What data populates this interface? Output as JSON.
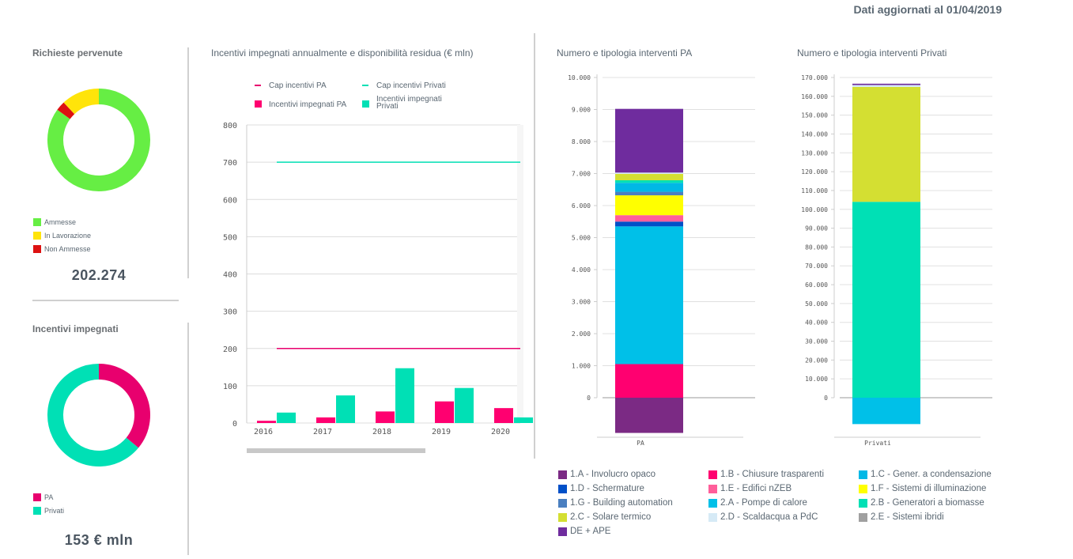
{
  "header": {
    "updated_label": "Dati aggiornati al 01/04/2019"
  },
  "richieste": {
    "title": "Richieste pervenute",
    "total": "202.274",
    "legend": [
      {
        "label": "Ammesse",
        "color": "#66ee44"
      },
      {
        "label": "In Lavorazione",
        "color": "#ffe40a"
      },
      {
        "label": "Non Ammesse",
        "color": "#dd1111"
      }
    ]
  },
  "incentivi": {
    "title": "Incentivi impegnati",
    "total": "153 € mln",
    "legend": [
      {
        "label": "PA",
        "color": "#e8006e"
      },
      {
        "label": "Privati",
        "color": "#00e0b5"
      }
    ]
  },
  "annual": {
    "title": "Incentivi impegnati annualmente e disponibilità residua (€ mln)",
    "legend": [
      {
        "label": "Cap incentivi PA",
        "kind": "line",
        "color": "#e8006e"
      },
      {
        "label": "Cap incentivi Privati",
        "kind": "line",
        "color": "#00e0b5"
      },
      {
        "label": "Incentivi impegnati PA",
        "kind": "box",
        "color": "#ff0070"
      },
      {
        "label": "Incentivi impegnati Privati",
        "kind": "box",
        "color": "#00e0b5"
      }
    ]
  },
  "pa_chart": {
    "title": "Numero e tipologia interventi PA",
    "category": "PA"
  },
  "priv_chart": {
    "title": "Numero e tipologia interventi Privati",
    "category": "Privati"
  },
  "bottom_legend": [
    {
      "label": "1.A - Involucro opaco",
      "color": "#7b2a84"
    },
    {
      "label": "1.B - Chiusure trasparenti",
      "color": "#ff0070"
    },
    {
      "label": "1.C - Gener. a condensazione",
      "color": "#00b8e6"
    },
    {
      "label": "1.D - Schermature",
      "color": "#0050c8"
    },
    {
      "label": "1.E - Edifici nZEB",
      "color": "#ff5e9a"
    },
    {
      "label": "1.F - Sistemi di illuminazione",
      "color": "#ffff00"
    },
    {
      "label": "1.G - Building automation",
      "color": "#4a7fc0"
    },
    {
      "label": "2.A - Pompe di calore",
      "color": "#00c0e8"
    },
    {
      "label": "2.B - Generatori a biomasse",
      "color": "#00e0b5"
    },
    {
      "label": "2.C - Solare termico",
      "color": "#d4df32"
    },
    {
      "label": "2.D - Scaldacqua a PdC",
      "color": "#d6eaf6"
    },
    {
      "label": "2.E - Sistemi ibridi",
      "color": "#a0a0a0"
    },
    {
      "label": "DE + APE",
      "color": "#6f2c9e"
    }
  ],
  "chart_data": [
    {
      "type": "pie",
      "title": "Richieste pervenute",
      "labels": [
        "Ammesse",
        "In Lavorazione",
        "Non Ammesse"
      ],
      "values": [
        85,
        12,
        3
      ],
      "unit": "% (estimated share)",
      "colors": [
        "#66ee44",
        "#ffe40a",
        "#dd1111"
      ]
    },
    {
      "type": "pie",
      "title": "Incentivi impegnati",
      "labels": [
        "PA",
        "Privati"
      ],
      "values": [
        36,
        64
      ],
      "unit": "% (estimated share)",
      "colors": [
        "#e8006e",
        "#00e0b5"
      ]
    },
    {
      "type": "bar",
      "title": "Incentivi impegnati annualmente e disponibilità residua (€ mln)",
      "categories": [
        "2016",
        "2017",
        "2018",
        "2019",
        "2020"
      ],
      "series": [
        {
          "name": "Incentivi impegnati PA",
          "kind": "bar",
          "color": "#ff0070",
          "values": [
            6,
            15,
            31,
            58,
            40
          ]
        },
        {
          "name": "Incentivi impegnati Privati",
          "kind": "bar",
          "color": "#00e0b5",
          "values": [
            28,
            74,
            147,
            94,
            15
          ]
        },
        {
          "name": "Cap incentivi PA",
          "kind": "line",
          "color": "#e8006e",
          "values": [
            200,
            200,
            200,
            200,
            200
          ]
        },
        {
          "name": "Cap incentivi Privati",
          "kind": "line",
          "color": "#00e0b5",
          "values": [
            700,
            700,
            700,
            700,
            700
          ]
        }
      ],
      "yticks": [
        0,
        100,
        200,
        300,
        400,
        500,
        600,
        700,
        800
      ],
      "ylim": [
        0,
        800
      ],
      "grid": true,
      "legend": "top"
    },
    {
      "type": "bar",
      "stacked": true,
      "title": "Numero e tipologia interventi PA",
      "categories": [
        "PA"
      ],
      "series": [
        {
          "name": "1.A - Involucro opaco",
          "color": "#7b2a84",
          "values": [
            1100
          ]
        },
        {
          "name": "1.B - Chiusure trasparenti",
          "color": "#ff0070",
          "values": [
            1050
          ]
        },
        {
          "name": "2.A - Pompe di calore",
          "color": "#00c0e8",
          "values": [
            4300
          ]
        },
        {
          "name": "1.D - Schermature",
          "color": "#0050c8",
          "values": [
            150
          ]
        },
        {
          "name": "1.E - Edifici nZEB",
          "color": "#ff5e9a",
          "values": [
            200
          ]
        },
        {
          "name": "1.F - Sistemi di illuminazione",
          "color": "#ffff00",
          "values": [
            620
          ]
        },
        {
          "name": "1.G - Building automation",
          "color": "#4a7fc0",
          "values": [
            110
          ]
        },
        {
          "name": "1.C - Gener. a condensazione",
          "color": "#00b8e6",
          "values": [
            280
          ]
        },
        {
          "name": "2.B - Generatori a biomasse",
          "color": "#00e0b5",
          "values": [
            80
          ]
        },
        {
          "name": "2.C - Solare termico",
          "color": "#d4df32",
          "values": [
            200
          ]
        },
        {
          "name": "2.D - Scaldacqua a PdC",
          "color": "#d6eaf6",
          "values": [
            40
          ]
        },
        {
          "name": "DE + APE",
          "color": "#6f2c9e",
          "values": [
            1990
          ]
        }
      ],
      "yticks": [
        "0",
        "1.000",
        "2.000",
        "3.000",
        "4.000",
        "5.000",
        "6.000",
        "7.000",
        "8.000",
        "9.000",
        "10.000"
      ],
      "ylim": [
        0,
        10000
      ],
      "baseline_offset_series": "1.A - Involucro opaco",
      "grid": true
    },
    {
      "type": "bar",
      "stacked": true,
      "title": "Numero e tipologia interventi Privati",
      "categories": [
        "Privati"
      ],
      "series": [
        {
          "name": "2.A - Pompe di calore",
          "color": "#00c0e8",
          "values": [
            14000
          ]
        },
        {
          "name": "2.B - Generatori a biomasse",
          "color": "#00e0b5",
          "values": [
            104000
          ]
        },
        {
          "name": "2.C - Solare termico",
          "color": "#d4df32",
          "values": [
            61000
          ]
        },
        {
          "name": "2.D - Scaldacqua a PdC",
          "color": "#d6eaf6",
          "values": [
            1000
          ]
        },
        {
          "name": "DE + APE",
          "color": "#6f2c9e",
          "values": [
            700
          ]
        }
      ],
      "yticks": [
        "0",
        "10.000",
        "20.000",
        "30.000",
        "40.000",
        "50.000",
        "60.000",
        "70.000",
        "80.000",
        "90.000",
        "100.000",
        "110.000",
        "120.000",
        "130.000",
        "140.000",
        "150.000",
        "160.000",
        "170.000"
      ],
      "ylim": [
        0,
        170000
      ],
      "baseline_offset_series": "2.A - Pompe di calore",
      "grid": true
    }
  ]
}
